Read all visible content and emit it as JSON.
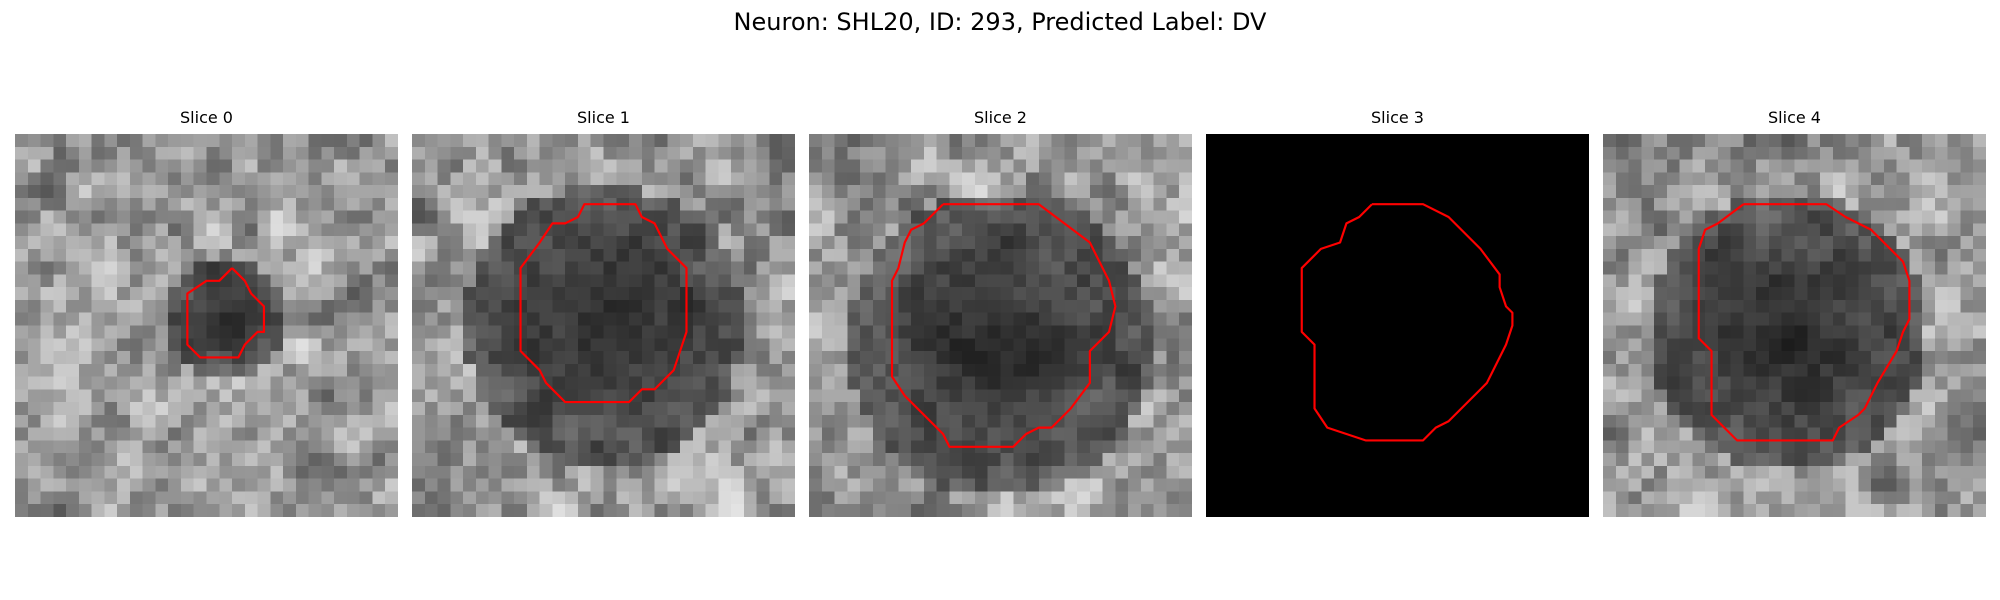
{
  "figure": {
    "title": "Neuron: SHL20, ID: 293, Predicted Label: DV"
  },
  "colors": {
    "contour": "#ff0000",
    "background": "#ffffff"
  },
  "grid": {
    "rows": 30,
    "cols": 30
  },
  "slices": [
    {
      "title": "Slice 0",
      "mode": "texture",
      "seed": 11,
      "blank": false,
      "dark_center": [
        16.5,
        14.5
      ],
      "dark_radius": 5,
      "contour": [
        [
          17,
          10.5
        ],
        [
          16,
          11.5
        ],
        [
          15,
          11.5
        ],
        [
          13.5,
          12.5
        ],
        [
          13.5,
          16.5
        ],
        [
          14.5,
          17.5
        ],
        [
          17.5,
          17.5
        ],
        [
          18,
          16.5
        ],
        [
          19,
          15.5
        ],
        [
          19.5,
          15.5
        ],
        [
          19.5,
          13.5
        ],
        [
          18.5,
          12.5
        ],
        [
          18,
          11.5
        ],
        [
          17,
          10.5
        ]
      ]
    },
    {
      "title": "Slice 1",
      "mode": "texture",
      "seed": 23,
      "blank": false,
      "dark_center": [
        15,
        15
      ],
      "dark_radius": 11,
      "contour": [
        [
          15,
          5.5
        ],
        [
          13.5,
          5.5
        ],
        [
          13,
          6.5
        ],
        [
          12,
          7
        ],
        [
          11,
          7
        ],
        [
          10,
          8.5
        ],
        [
          8.5,
          10.5
        ],
        [
          8.5,
          17
        ],
        [
          10,
          18.5
        ],
        [
          10.5,
          19.5
        ],
        [
          12,
          21
        ],
        [
          17,
          21
        ],
        [
          18,
          20
        ],
        [
          19,
          20
        ],
        [
          20.5,
          18.5
        ],
        [
          21,
          17
        ],
        [
          21.5,
          15.5
        ],
        [
          21.5,
          10.5
        ],
        [
          20,
          9
        ],
        [
          19,
          7
        ],
        [
          18,
          6.5
        ],
        [
          17.5,
          5.5
        ],
        [
          15,
          5.5
        ]
      ]
    },
    {
      "title": "Slice 2",
      "mode": "texture",
      "seed": 37,
      "blank": false,
      "dark_center": [
        15,
        16.5
      ],
      "dark_radius": 12,
      "contour": [
        [
          10.5,
          5.5
        ],
        [
          9,
          7
        ],
        [
          8,
          7.5
        ],
        [
          7.5,
          8.5
        ],
        [
          7,
          10.5
        ],
        [
          6.5,
          11.5
        ],
        [
          6.5,
          19
        ],
        [
          7.5,
          20.5
        ],
        [
          9,
          22
        ],
        [
          10.5,
          23.5
        ],
        [
          11,
          24.5
        ],
        [
          16,
          24.5
        ],
        [
          17,
          23.5
        ],
        [
          18,
          23
        ],
        [
          19,
          23
        ],
        [
          20.5,
          21.5
        ],
        [
          22,
          19.5
        ],
        [
          22,
          17
        ],
        [
          23.5,
          15.5
        ],
        [
          24,
          13.5
        ],
        [
          23.5,
          11.5
        ],
        [
          23,
          10.5
        ],
        [
          22,
          8.5
        ],
        [
          20,
          7
        ],
        [
          18,
          5.5
        ],
        [
          10.5,
          5.5
        ]
      ]
    },
    {
      "title": "Slice 3",
      "mode": "blank",
      "seed": 0,
      "blank": true,
      "dark_center": [
        15,
        15
      ],
      "dark_radius": 0,
      "contour": [
        [
          13,
          5.5
        ],
        [
          12,
          6.5
        ],
        [
          11,
          7
        ],
        [
          10.5,
          8.5
        ],
        [
          9,
          9
        ],
        [
          7.5,
          10.5
        ],
        [
          7.5,
          15.5
        ],
        [
          8.5,
          16.5
        ],
        [
          8.5,
          21.5
        ],
        [
          9.5,
          23
        ],
        [
          12.5,
          24
        ],
        [
          17,
          24
        ],
        [
          18,
          23
        ],
        [
          19,
          22.5
        ],
        [
          20.5,
          21
        ],
        [
          21.5,
          20
        ],
        [
          22,
          19.5
        ],
        [
          23.5,
          16.5
        ],
        [
          24,
          15
        ],
        [
          24,
          14
        ],
        [
          23.5,
          13.5
        ],
        [
          23,
          12
        ],
        [
          23,
          11
        ],
        [
          21.5,
          9
        ],
        [
          20,
          7.5
        ],
        [
          19,
          6.5
        ],
        [
          17,
          5.5
        ],
        [
          13,
          5.5
        ]
      ]
    },
    {
      "title": "Slice 4",
      "mode": "texture",
      "seed": 53,
      "blank": false,
      "dark_center": [
        14.5,
        15.5
      ],
      "dark_radius": 11,
      "contour": [
        [
          11,
          5.5
        ],
        [
          9,
          7
        ],
        [
          8,
          7.5
        ],
        [
          7.5,
          9
        ],
        [
          7.5,
          16
        ],
        [
          8.5,
          17
        ],
        [
          8.5,
          22
        ],
        [
          10.5,
          24
        ],
        [
          18,
          24
        ],
        [
          18.5,
          23
        ],
        [
          20,
          22
        ],
        [
          20.5,
          21.5
        ],
        [
          21.5,
          19.5
        ],
        [
          23,
          17
        ],
        [
          23.5,
          15.5
        ],
        [
          24,
          14.5
        ],
        [
          24,
          11.5
        ],
        [
          23.5,
          10
        ],
        [
          22.5,
          9
        ],
        [
          21,
          7.5
        ],
        [
          19,
          6.5
        ],
        [
          17.5,
          5.5
        ],
        [
          11,
          5.5
        ]
      ]
    }
  ]
}
